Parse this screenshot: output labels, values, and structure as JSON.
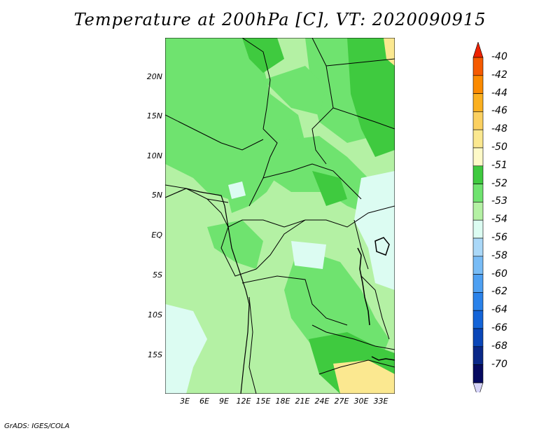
{
  "title": "Temperature at 200hPa [C], VT: 2020090915",
  "credit": "GrADS: IGES/COLA",
  "map": {
    "lon_range": [
      0,
      35
    ],
    "lat_range": [
      -20,
      25
    ],
    "x_ticks": [
      "3E",
      "6E",
      "9E",
      "12E",
      "15E",
      "18E",
      "21E",
      "24E",
      "27E",
      "30E",
      "33E"
    ],
    "y_ticks": [
      "20N",
      "15N",
      "10N",
      "5N",
      "EQ",
      "5S",
      "10S",
      "15S"
    ]
  },
  "colorbar": {
    "labels": [
      "-40",
      "-42",
      "-44",
      "-46",
      "-48",
      "-50",
      "-51",
      "-52",
      "-53",
      "-54",
      "-56",
      "-58",
      "-60",
      "-62",
      "-64",
      "-66",
      "-68",
      "-70"
    ],
    "colors": [
      "#ee2200",
      "#f55a00",
      "#fb8a00",
      "#fbb020",
      "#fbd060",
      "#fbe890",
      "#fefac8",
      "#3fca3f",
      "#6fe36f",
      "#b4f1a4",
      "#dcfcf2",
      "#aad8f8",
      "#78bcf6",
      "#4ea0f2",
      "#2a82ea",
      "#1464d8",
      "#0a46b8",
      "#0a2888",
      "#060a60",
      "#d6d4f8"
    ]
  },
  "fills": {
    "lightest_green": "#b4f1a4",
    "mid_green": "#6fe36f",
    "dark_green": "#3fca3f",
    "pale_blue": "#dcfcf2",
    "pale_yellow": "#fbe890"
  }
}
